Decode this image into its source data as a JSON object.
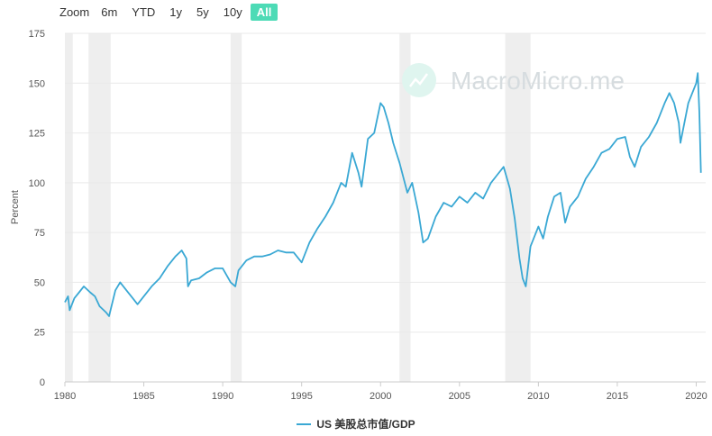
{
  "zoom": {
    "label": "Zoom",
    "buttons": [
      "6m",
      "YTD",
      "1y",
      "5y",
      "10y",
      "All"
    ],
    "active": "All"
  },
  "watermark": "MacroMicro.me",
  "colors": {
    "series": "#3aa8d4",
    "active_button": "#4ddbb6",
    "recession": "#eeeeee"
  },
  "chart_data": {
    "type": "line",
    "ylabel": "Percent",
    "xlim": [
      1980,
      2020.6
    ],
    "ylim": [
      0,
      175
    ],
    "x_ticks": [
      1980,
      1985,
      1990,
      1995,
      2000,
      2005,
      2010,
      2015,
      2020
    ],
    "y_ticks": [
      0,
      25,
      50,
      75,
      100,
      125,
      150,
      175
    ],
    "recessions": [
      [
        1980.0,
        1980.5
      ],
      [
        1981.5,
        1982.9
      ],
      [
        1990.5,
        1991.2
      ],
      [
        2001.2,
        2001.9
      ],
      [
        2007.9,
        2009.5
      ]
    ],
    "series": [
      {
        "name": "US 美股总市值/GDP",
        "x": [
          1980.0,
          1980.2,
          1980.3,
          1980.6,
          1980.9,
          1981.2,
          1981.6,
          1981.9,
          1982.2,
          1982.6,
          1982.8,
          1983.2,
          1983.5,
          1983.9,
          1984.3,
          1984.6,
          1985.0,
          1985.5,
          1986.0,
          1986.5,
          1987.0,
          1987.4,
          1987.7,
          1987.8,
          1988.0,
          1988.5,
          1989.0,
          1989.5,
          1990.0,
          1990.5,
          1990.8,
          1991.0,
          1991.5,
          1992.0,
          1992.5,
          1993.0,
          1993.5,
          1994.0,
          1994.5,
          1995.0,
          1995.5,
          1996.0,
          1996.5,
          1997.0,
          1997.5,
          1997.8,
          1998.2,
          1998.6,
          1998.8,
          1999.2,
          1999.6,
          2000.0,
          2000.2,
          2000.5,
          2000.8,
          2001.2,
          2001.7,
          2002.0,
          2002.4,
          2002.7,
          2003.0,
          2003.5,
          2004.0,
          2004.5,
          2005.0,
          2005.5,
          2006.0,
          2006.5,
          2007.0,
          2007.4,
          2007.8,
          2008.2,
          2008.5,
          2008.8,
          2009.0,
          2009.2,
          2009.5,
          2010.0,
          2010.3,
          2010.6,
          2011.0,
          2011.4,
          2011.7,
          2012.0,
          2012.5,
          2013.0,
          2013.5,
          2014.0,
          2014.5,
          2015.0,
          2015.5,
          2015.8,
          2016.1,
          2016.5,
          2017.0,
          2017.5,
          2018.0,
          2018.3,
          2018.6,
          2018.9,
          2019.0,
          2019.5,
          2020.0,
          2020.1,
          2020.2,
          2020.3
        ],
        "y": [
          40,
          43,
          36,
          42,
          45,
          48,
          45,
          43,
          38,
          35,
          33,
          46,
          50,
          46,
          42,
          39,
          43,
          48,
          52,
          58,
          63,
          66,
          62,
          48,
          51,
          52,
          55,
          57,
          57,
          50,
          48,
          56,
          61,
          63,
          63,
          64,
          66,
          65,
          65,
          60,
          70,
          77,
          83,
          90,
          100,
          98,
          115,
          105,
          98,
          122,
          125,
          140,
          138,
          130,
          120,
          110,
          95,
          100,
          85,
          70,
          72,
          83,
          90,
          88,
          93,
          90,
          95,
          92,
          100,
          104,
          108,
          97,
          82,
          62,
          52,
          48,
          68,
          78,
          72,
          83,
          93,
          95,
          80,
          88,
          93,
          102,
          108,
          115,
          117,
          122,
          123,
          113,
          108,
          118,
          123,
          130,
          140,
          145,
          140,
          130,
          120,
          140,
          150,
          155,
          135,
          105
        ]
      }
    ]
  },
  "legend": {
    "label": "US 美股总市值/GDP"
  }
}
